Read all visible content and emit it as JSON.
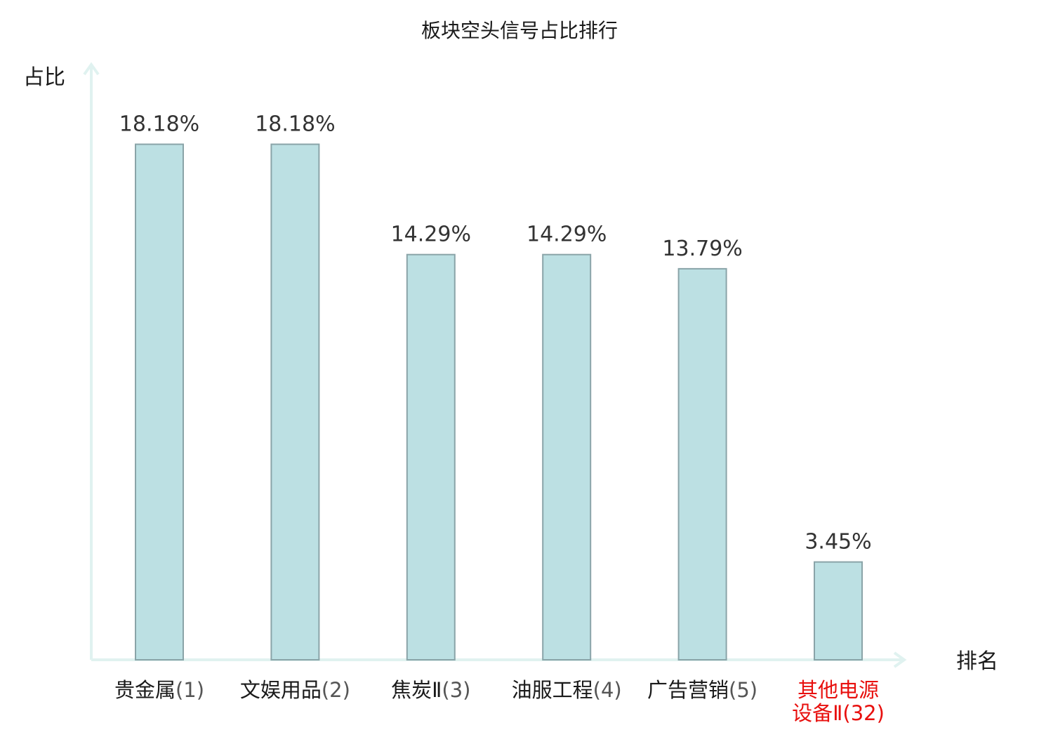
{
  "chart_data": {
    "type": "bar",
    "title": "板块空头信号占比排行",
    "ylabel": "占比",
    "xlabel": "排名",
    "ylim": [
      0,
      20
    ],
    "grid": false,
    "categories": [
      {
        "name": "贵金属",
        "rank": "(1)",
        "value": 18.18,
        "label": "18.18%",
        "highlight": false
      },
      {
        "name": "文娱用品",
        "rank": "(2)",
        "value": 18.18,
        "label": "18.18%",
        "highlight": false
      },
      {
        "name": "焦炭Ⅱ",
        "rank": "(3)",
        "value": 14.29,
        "label": "14.29%",
        "highlight": false
      },
      {
        "name": "油服工程",
        "rank": "(4)",
        "value": 14.29,
        "label": "14.29%",
        "highlight": false
      },
      {
        "name": "广告营销",
        "rank": "(5)",
        "value": 13.79,
        "label": "13.79%",
        "highlight": false
      },
      {
        "name": "其他电源设备Ⅱ",
        "rank": "(32)",
        "value": 3.45,
        "label": "3.45%",
        "highlight": true,
        "lines": [
          "其他电源",
          "设备Ⅱ"
        ]
      }
    ],
    "colors": {
      "bar_fill": "#bce0e3",
      "bar_stroke": "#8aa4a8",
      "axis": "#e0f2f0",
      "highlight": "#e8100e"
    }
  }
}
